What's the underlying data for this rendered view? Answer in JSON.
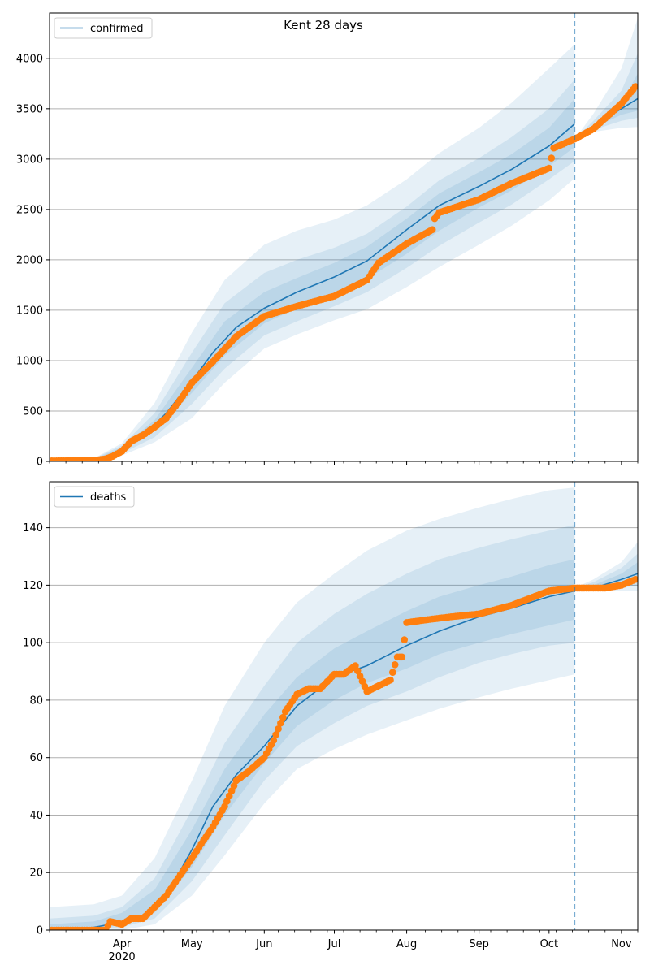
{
  "figure": {
    "title": "Kent 28 days",
    "x_tick_labels": [
      "Apr\n2020",
      "May",
      "Jun",
      "Jul",
      "Aug",
      "Sep",
      "Oct",
      "Nov"
    ]
  },
  "colors": {
    "model": "#1f77b4",
    "observed": "#ff7f0e",
    "band": "#1f77b4",
    "grid": "#b0b0b0",
    "forecast_line": "#1f77b4"
  },
  "chart_data": [
    {
      "type": "line",
      "legend": "confirmed",
      "legend_position": "top-left",
      "grid": "horizontal",
      "x_range": [
        "2020-03-01",
        "2020-11-08"
      ],
      "forecast_start": "2020-10-12",
      "ylim": [
        0,
        4450
      ],
      "y_ticks": [
        0,
        500,
        1000,
        1500,
        2000,
        2500,
        3000,
        3500,
        4000
      ],
      "model": {
        "x": [
          "2020-03-01",
          "2020-03-20",
          "2020-03-25",
          "2020-04-01",
          "2020-04-10",
          "2020-04-20",
          "2020-05-01",
          "2020-05-10",
          "2020-05-20",
          "2020-06-01",
          "2020-06-15",
          "2020-07-01",
          "2020-07-15",
          "2020-08-01",
          "2020-08-15",
          "2020-09-01",
          "2020-09-15",
          "2020-10-01",
          "2020-10-12"
        ],
        "y": [
          5,
          10,
          40,
          110,
          250,
          480,
          800,
          1080,
          1330,
          1520,
          1680,
          1830,
          1990,
          2300,
          2540,
          2730,
          2900,
          3130,
          3350
        ]
      },
      "bands": [
        {
          "level": "outer",
          "x": [
            "2020-03-01",
            "2020-03-20",
            "2020-04-01",
            "2020-04-15",
            "2020-05-01",
            "2020-05-15",
            "2020-06-01",
            "2020-06-15",
            "2020-07-01",
            "2020-07-15",
            "2020-08-01",
            "2020-08-15",
            "2020-09-01",
            "2020-09-15",
            "2020-10-01",
            "2020-10-12"
          ],
          "upper": [
            10,
            30,
            180,
            580,
            1280,
            1800,
            2150,
            2290,
            2400,
            2540,
            2800,
            3060,
            3310,
            3560,
            3900,
            4140
          ],
          "lower": [
            0,
            0,
            60,
            190,
            430,
            780,
            1120,
            1260,
            1400,
            1510,
            1730,
            1930,
            2150,
            2340,
            2590,
            2810
          ]
        },
        {
          "level": "middle",
          "x": [
            "2020-03-01",
            "2020-03-20",
            "2020-04-01",
            "2020-04-15",
            "2020-05-01",
            "2020-05-15",
            "2020-06-01",
            "2020-06-15",
            "2020-07-01",
            "2020-07-15",
            "2020-08-01",
            "2020-08-15",
            "2020-09-01",
            "2020-09-15",
            "2020-10-01",
            "2020-10-12"
          ],
          "upper": [
            8,
            25,
            160,
            480,
            1080,
            1570,
            1870,
            2000,
            2120,
            2260,
            2530,
            2790,
            3010,
            3220,
            3500,
            3790
          ],
          "lower": [
            0,
            0,
            80,
            240,
            570,
            920,
            1250,
            1390,
            1540,
            1680,
            1920,
            2140,
            2370,
            2550,
            2800,
            2980
          ]
        },
        {
          "level": "inner",
          "x": [
            "2020-03-01",
            "2020-03-20",
            "2020-04-01",
            "2020-04-15",
            "2020-05-01",
            "2020-05-15",
            "2020-06-01",
            "2020-06-15",
            "2020-07-01",
            "2020-07-15",
            "2020-08-01",
            "2020-08-15",
            "2020-09-01",
            "2020-09-15",
            "2020-10-01",
            "2020-10-12"
          ],
          "upper": [
            6,
            20,
            140,
            410,
            930,
            1390,
            1680,
            1820,
            1970,
            2130,
            2410,
            2660,
            2870,
            3050,
            3310,
            3600
          ],
          "lower": [
            0,
            2,
            100,
            300,
            680,
            1050,
            1370,
            1520,
            1670,
            1810,
            2060,
            2290,
            2520,
            2690,
            2930,
            3120
          ]
        }
      ],
      "forecast_bands": [
        {
          "level": "outer",
          "x": [
            "2020-10-12",
            "2020-10-20",
            "2020-11-01",
            "2020-11-08"
          ],
          "upper": [
            3200,
            3450,
            3900,
            4400
          ],
          "lower": [
            3200,
            3270,
            3310,
            3320
          ]
        },
        {
          "level": "middle",
          "x": [
            "2020-10-12",
            "2020-10-20",
            "2020-11-01",
            "2020-11-08"
          ],
          "upper": [
            3200,
            3380,
            3680,
            4050
          ],
          "lower": [
            3200,
            3290,
            3380,
            3410
          ]
        },
        {
          "level": "inner",
          "x": [
            "2020-10-12",
            "2020-10-20",
            "2020-11-01",
            "2020-11-08"
          ],
          "upper": [
            3200,
            3330,
            3550,
            3850
          ],
          "lower": [
            3200,
            3310,
            3440,
            3480
          ]
        }
      ],
      "forecast_model": {
        "x": [
          "2020-10-12",
          "2020-10-20",
          "2020-11-01",
          "2020-11-08"
        ],
        "y": [
          3220,
          3330,
          3500,
          3600
        ]
      },
      "observed": {
        "x": [
          "2020-03-01",
          "2020-03-20",
          "2020-03-25",
          "2020-03-28",
          "2020-04-01",
          "2020-04-05",
          "2020-04-10",
          "2020-04-15",
          "2020-04-20",
          "2020-04-25",
          "2020-05-01",
          "2020-05-10",
          "2020-05-20",
          "2020-06-01",
          "2020-06-15",
          "2020-07-01",
          "2020-07-15",
          "2020-07-20",
          "2020-08-01",
          "2020-08-12",
          "2020-08-13",
          "2020-08-15",
          "2020-09-01",
          "2020-09-15",
          "2020-10-01",
          "2020-10-03",
          "2020-10-12",
          "2020-10-20",
          "2020-11-01",
          "2020-11-07"
        ],
        "y": [
          5,
          10,
          25,
          50,
          100,
          200,
          260,
          340,
          430,
          580,
          780,
          990,
          1240,
          1440,
          1540,
          1640,
          1800,
          1970,
          2160,
          2300,
          2410,
          2470,
          2600,
          2760,
          2910,
          3110,
          3200,
          3300,
          3550,
          3720
        ]
      }
    },
    {
      "type": "line",
      "legend": "deaths",
      "legend_position": "top-left",
      "grid": "horizontal",
      "x_range": [
        "2020-03-01",
        "2020-11-08"
      ],
      "forecast_start": "2020-10-12",
      "ylim": [
        0,
        156
      ],
      "y_ticks": [
        0,
        20,
        40,
        60,
        80,
        100,
        120,
        140
      ],
      "model": {
        "x": [
          "2020-03-01",
          "2020-03-20",
          "2020-03-27",
          "2020-04-01",
          "2020-04-10",
          "2020-04-20",
          "2020-05-01",
          "2020-05-10",
          "2020-05-20",
          "2020-06-01",
          "2020-06-15",
          "2020-07-01",
          "2020-07-15",
          "2020-08-01",
          "2020-08-15",
          "2020-09-01",
          "2020-09-15",
          "2020-10-01",
          "2020-10-12"
        ],
        "y": [
          0,
          1,
          2,
          3,
          5,
          12,
          28,
          43,
          54,
          64,
          78,
          88,
          92,
          99,
          104,
          109,
          112,
          116,
          118
        ]
      },
      "bands": [
        {
          "level": "outer",
          "x": [
            "2020-03-01",
            "2020-03-20",
            "2020-04-01",
            "2020-04-15",
            "2020-05-01",
            "2020-05-15",
            "2020-06-01",
            "2020-06-15",
            "2020-07-01",
            "2020-07-15",
            "2020-08-01",
            "2020-08-15",
            "2020-09-01",
            "2020-09-15",
            "2020-10-01",
            "2020-10-12"
          ],
          "upper": [
            8,
            9,
            12,
            25,
            52,
            78,
            100,
            114,
            124,
            132,
            139,
            143,
            147,
            150,
            153,
            154
          ],
          "lower": [
            0,
            0,
            0,
            2,
            12,
            26,
            44,
            56,
            63,
            68,
            73,
            77,
            81,
            84,
            87,
            89
          ]
        },
        {
          "level": "middle",
          "x": [
            "2020-03-01",
            "2020-03-20",
            "2020-04-01",
            "2020-04-15",
            "2020-05-01",
            "2020-05-15",
            "2020-06-01",
            "2020-06-15",
            "2020-07-01",
            "2020-07-15",
            "2020-08-01",
            "2020-08-15",
            "2020-09-01",
            "2020-09-15",
            "2020-10-01",
            "2020-10-12"
          ],
          "upper": [
            4,
            5,
            8,
            18,
            42,
            65,
            85,
            100,
            110,
            117,
            124,
            129,
            133,
            136,
            139,
            141
          ],
          "lower": [
            0,
            0,
            1,
            4,
            17,
            33,
            52,
            64,
            72,
            78,
            83,
            88,
            93,
            96,
            99,
            100
          ]
        },
        {
          "level": "inner",
          "x": [
            "2020-03-01",
            "2020-03-20",
            "2020-04-01",
            "2020-04-15",
            "2020-05-01",
            "2020-05-15",
            "2020-06-01",
            "2020-06-15",
            "2020-07-01",
            "2020-07-15",
            "2020-08-01",
            "2020-08-15",
            "2020-09-01",
            "2020-09-15",
            "2020-10-01",
            "2020-10-12"
          ],
          "upper": [
            2,
            3,
            6,
            14,
            35,
            56,
            75,
            88,
            98,
            104,
            111,
            116,
            120,
            123,
            127,
            129
          ],
          "lower": [
            0,
            0,
            2,
            6,
            22,
            40,
            58,
            71,
            80,
            86,
            91,
            96,
            100,
            103,
            106,
            108
          ]
        }
      ],
      "forecast_bands": [
        {
          "level": "outer",
          "x": [
            "2020-10-12",
            "2020-10-20",
            "2020-11-01",
            "2020-11-08"
          ],
          "upper": [
            119,
            122,
            128,
            135
          ],
          "lower": [
            119,
            118,
            118,
            118
          ]
        },
        {
          "level": "middle",
          "x": [
            "2020-10-12",
            "2020-10-20",
            "2020-11-01",
            "2020-11-08"
          ],
          "upper": [
            119,
            121,
            126,
            131
          ],
          "lower": [
            119,
            119,
            119,
            120
          ]
        },
        {
          "level": "inner",
          "x": [
            "2020-10-12",
            "2020-10-20",
            "2020-11-01",
            "2020-11-08"
          ],
          "upper": [
            119,
            120,
            124,
            128
          ],
          "lower": [
            119,
            119,
            120,
            121
          ]
        }
      ],
      "forecast_model": {
        "x": [
          "2020-10-12",
          "2020-10-20",
          "2020-11-01",
          "2020-11-08"
        ],
        "y": [
          119,
          119,
          122,
          124
        ]
      },
      "observed": {
        "x": [
          "2020-03-01",
          "2020-03-25",
          "2020-03-27",
          "2020-04-01",
          "2020-04-05",
          "2020-04-10",
          "2020-04-15",
          "2020-04-20",
          "2020-04-25",
          "2020-05-01",
          "2020-05-05",
          "2020-05-10",
          "2020-05-15",
          "2020-05-20",
          "2020-05-25",
          "2020-06-01",
          "2020-06-05",
          "2020-06-10",
          "2020-06-15",
          "2020-06-20",
          "2020-06-25",
          "2020-07-01",
          "2020-07-05",
          "2020-07-10",
          "2020-07-15",
          "2020-07-20",
          "2020-07-25",
          "2020-07-28",
          "2020-07-30",
          "2020-08-01",
          "2020-08-10",
          "2020-08-20",
          "2020-09-01",
          "2020-09-15",
          "2020-10-01",
          "2020-10-12",
          "2020-10-25",
          "2020-11-01",
          "2020-11-07"
        ],
        "y": [
          0,
          0,
          3,
          2,
          4,
          4,
          8,
          12,
          18,
          25,
          30,
          36,
          43,
          52,
          55,
          60,
          66,
          76,
          82,
          84,
          84,
          89,
          89,
          92,
          83,
          85,
          87,
          95,
          95,
          107,
          108,
          109,
          110,
          113,
          118,
          119,
          119,
          120,
          122
        ]
      }
    }
  ]
}
